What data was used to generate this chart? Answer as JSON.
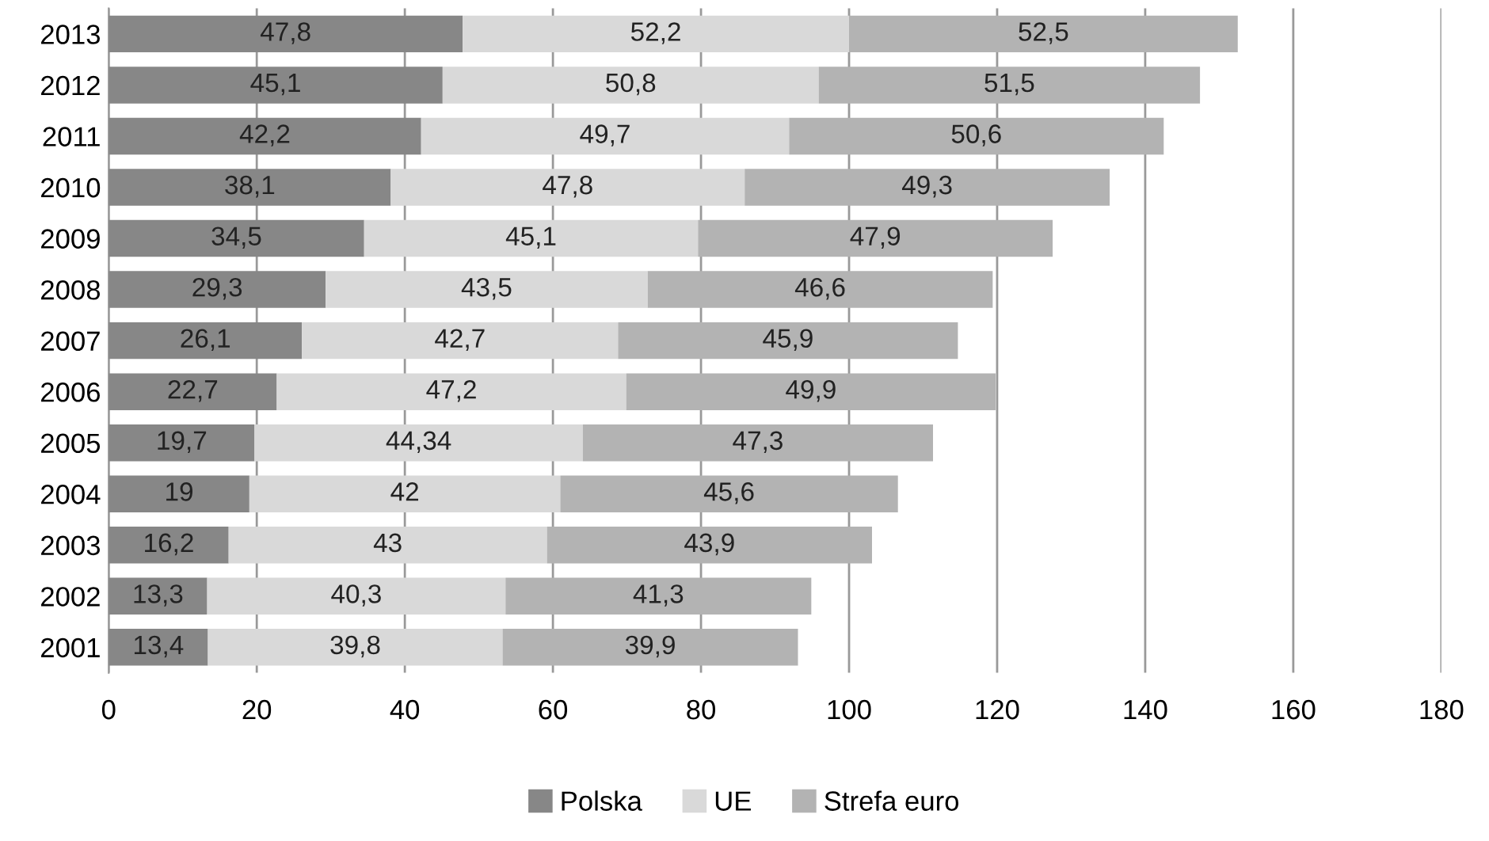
{
  "chart_data": {
    "type": "bar",
    "orientation": "horizontal",
    "stacked": true,
    "categories": [
      "2013",
      "2012",
      "2011",
      "2010",
      "2009",
      "2008",
      "2007",
      "2006",
      "2005",
      "2004",
      "2003",
      "2002",
      "2001"
    ],
    "series": [
      {
        "name": "Polska",
        "color": "#878787",
        "values": [
          47.8,
          45.1,
          42.2,
          38.1,
          34.5,
          29.3,
          26.1,
          22.7,
          19.7,
          19,
          16.2,
          13.3,
          13.4
        ],
        "value_labels": [
          "47,8",
          "45,1",
          "42,2",
          "38,1",
          "34,5",
          "29,3",
          "26,1",
          "22,7",
          "19,7",
          "19",
          "16,2",
          "13,3",
          "13,4"
        ]
      },
      {
        "name": "UE",
        "color": "#d9d9d9",
        "values": [
          52.2,
          50.8,
          49.7,
          47.8,
          45.1,
          43.5,
          42.7,
          47.2,
          44.34,
          42,
          43,
          40.3,
          39.8
        ],
        "value_labels": [
          "52,2",
          "50,8",
          "49,7",
          "47,8",
          "45,1",
          "43,5",
          "42,7",
          "47,2",
          "44,34",
          "42",
          "43",
          "40,3",
          "39,8"
        ]
      },
      {
        "name": "Strefa euro",
        "color": "#b3b3b3",
        "values": [
          52.5,
          51.5,
          50.6,
          49.3,
          47.9,
          46.6,
          45.9,
          49.9,
          47.3,
          45.6,
          43.9,
          41.3,
          39.9
        ],
        "value_labels": [
          "52,5",
          "51,5",
          "50,6",
          "49,3",
          "47,9",
          "46,6",
          "45,9",
          "49,9",
          "47,3",
          "45,6",
          "43,9",
          "41,3",
          "39,9"
        ]
      }
    ],
    "xlim": [
      0,
      180
    ],
    "xticks": [
      0,
      20,
      40,
      60,
      80,
      100,
      120,
      140,
      160,
      180
    ],
    "grid": "x",
    "legend": "bottom"
  }
}
